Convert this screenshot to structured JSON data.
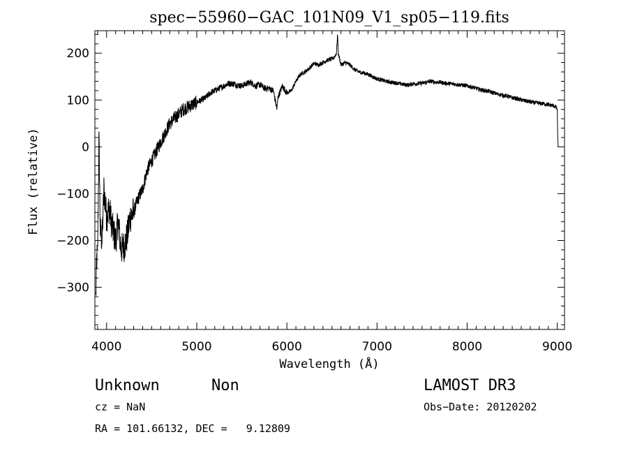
{
  "chart_data": {
    "type": "line",
    "title": "spec−55960−GAC_101N09_V1_sp05−119.fits",
    "xlabel": "Wavelength (Å)",
    "ylabel": "Flux (relative)",
    "xlim": [
      3870,
      9080
    ],
    "ylim": [
      -390,
      248
    ],
    "xticks": [
      4000,
      5000,
      6000,
      7000,
      8000,
      9000
    ],
    "xtick_labels": [
      "4000",
      "5000",
      "6000",
      "7000",
      "8000",
      "9000"
    ],
    "yticks": [
      -300,
      -200,
      -100,
      0,
      100,
      200
    ],
    "ytick_labels": [
      "−300",
      "−200",
      "−100",
      "0",
      "100",
      "200"
    ],
    "grid": false,
    "series": [
      {
        "name": "flux",
        "x": [
          3880,
          3890,
          3900,
          3915,
          3930,
          3950,
          3970,
          4000,
          4030,
          4060,
          4100,
          4130,
          4160,
          4200,
          4230,
          4260,
          4300,
          4350,
          4400,
          4450,
          4500,
          4550,
          4600,
          4650,
          4700,
          4750,
          4800,
          4850,
          4900,
          4950,
          5000,
          5050,
          5100,
          5150,
          5200,
          5250,
          5300,
          5350,
          5400,
          5450,
          5500,
          5550,
          5600,
          5650,
          5700,
          5750,
          5800,
          5850,
          5890,
          5900,
          5950,
          6000,
          6050,
          6100,
          6150,
          6200,
          6250,
          6300,
          6350,
          6400,
          6450,
          6500,
          6520,
          6550,
          6562,
          6570,
          6600,
          6650,
          6700,
          6750,
          6800,
          6850,
          6900,
          6950,
          7000,
          7050,
          7100,
          7150,
          7200,
          7250,
          7300,
          7350,
          7400,
          7450,
          7500,
          7550,
          7600,
          7650,
          7700,
          7750,
          7800,
          7850,
          7900,
          7950,
          8000,
          8050,
          8100,
          8150,
          8200,
          8250,
          8300,
          8350,
          8400,
          8450,
          8500,
          8550,
          8600,
          8650,
          8700,
          8750,
          8800,
          8850,
          8900,
          8950,
          8980,
          9000,
          9005,
          9010
        ],
        "values": [
          -320,
          -240,
          -230,
          20,
          -180,
          -200,
          -90,
          -150,
          -130,
          -170,
          -200,
          -160,
          -220,
          -210,
          -190,
          -150,
          -140,
          -110,
          -90,
          -50,
          -30,
          -10,
          10,
          30,
          50,
          60,
          70,
          80,
          85,
          90,
          95,
          100,
          105,
          115,
          120,
          125,
          130,
          135,
          135,
          132,
          130,
          135,
          138,
          130,
          133,
          125,
          125,
          120,
          80,
          105,
          130,
          115,
          120,
          140,
          155,
          160,
          168,
          178,
          175,
          180,
          185,
          188,
          190,
          200,
          240,
          200,
          175,
          180,
          175,
          165,
          160,
          158,
          155,
          150,
          145,
          143,
          140,
          138,
          137,
          135,
          133,
          132,
          135,
          135,
          136,
          138,
          140,
          138,
          138,
          136,
          135,
          134,
          133,
          132,
          130,
          128,
          125,
          122,
          120,
          118,
          115,
          112,
          110,
          108,
          105,
          103,
          100,
          98,
          96,
          94,
          93,
          92,
          90,
          88,
          86,
          80,
          20,
          0
        ]
      }
    ],
    "annotations": {
      "object_class": "Unknown",
      "subclass": "Non",
      "survey": "LAMOST DR3",
      "cz": "cz = NaN",
      "obs_date": "Obs−Date: 20120202",
      "coords": "RA = 101.66132, DEC =   9.12809"
    }
  }
}
